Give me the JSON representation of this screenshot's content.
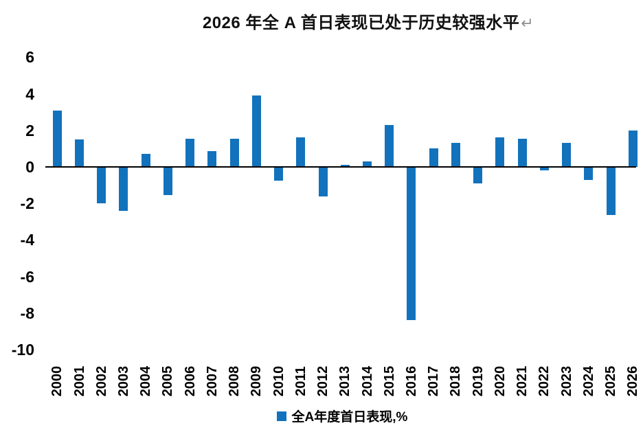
{
  "title": {
    "text": "2026 年全 A 首日表现已处于历史较强水平",
    "return_mark": "↵"
  },
  "legend": {
    "label": "全A年度首日表现,%",
    "marker_color": "#1272BC"
  },
  "colors": {
    "bar": "#1272BC",
    "axis_line": "#000000",
    "background": "#FFFFFF",
    "text": "#000000",
    "return_mark": "#8F8F8F"
  },
  "y_axis": {
    "ticks": [
      6,
      4,
      2,
      0,
      -2,
      -4,
      -6,
      -8,
      -10
    ]
  },
  "chart_data": {
    "type": "bar",
    "title": "2026 年全 A 首日表现已处于历史较强水平",
    "categories": [
      "2000",
      "2001",
      "2002",
      "2003",
      "2004",
      "2005",
      "2006",
      "2007",
      "2008",
      "2009",
      "2010",
      "2011",
      "2012",
      "2013",
      "2014",
      "2015",
      "2016",
      "2017",
      "2018",
      "2019",
      "2020",
      "2021",
      "2022",
      "2023",
      "2024",
      "2025",
      "2026"
    ],
    "values": [
      3.1,
      1.5,
      -2.0,
      -2.4,
      0.7,
      -1.55,
      1.55,
      0.85,
      1.55,
      3.9,
      -0.75,
      1.6,
      -1.6,
      0.1,
      0.3,
      2.3,
      -8.4,
      1.0,
      1.3,
      -0.9,
      1.6,
      1.55,
      -0.2,
      1.3,
      -0.7,
      -2.65,
      2.0
    ],
    "series_name": "全A年度首日表现,%",
    "xlabel": "",
    "ylabel": "",
    "ylim": [
      -10,
      6
    ],
    "ytick_interval": 2,
    "grid": false,
    "legend_position": "bottom-center",
    "x_tick_rotation": 90
  }
}
